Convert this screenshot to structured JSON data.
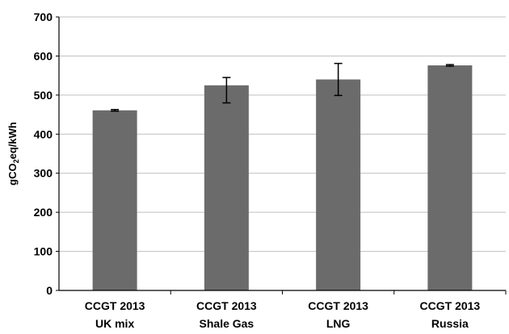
{
  "chart_data": {
    "type": "bar",
    "title": "",
    "xlabel": "",
    "ylabel": {
      "prefix": "gCO",
      "subscript": "2",
      "suffix": "eq/kWh"
    },
    "ylim": [
      0,
      700
    ],
    "yticks": [
      0,
      100,
      200,
      300,
      400,
      500,
      600,
      700
    ],
    "grid": true,
    "legend": "none",
    "bar_color": "#6b6b6b",
    "grid_color": "#bfbfbf",
    "categories": [
      [
        "CCGT 2013",
        "UK mix"
      ],
      [
        "CCGT 2013",
        "Shale Gas"
      ],
      [
        "CCGT 2013",
        "LNG"
      ],
      [
        "CCGT 2013",
        "Russia"
      ]
    ],
    "values": [
      461,
      525,
      540,
      576
    ],
    "error_low": [
      459,
      480,
      499,
      574
    ],
    "error_high": [
      463,
      545,
      581,
      578
    ]
  }
}
